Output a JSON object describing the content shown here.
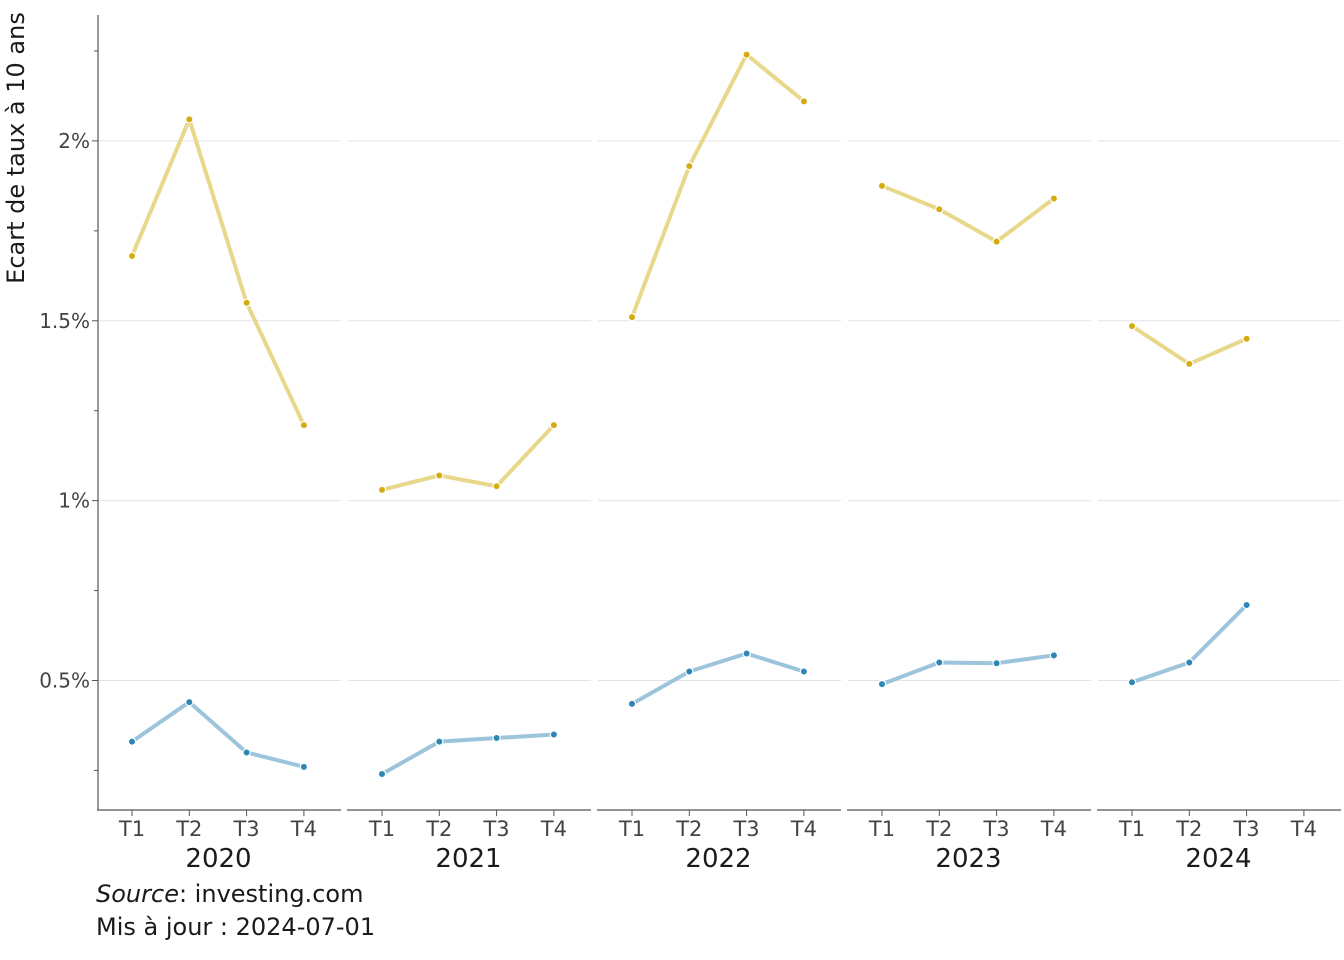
{
  "caption": {
    "source_label": "Source",
    "source_value": ": investing.com",
    "updated": "Mis à jour : 2024-07-01"
  },
  "chart_data": {
    "type": "line",
    "ylabel": "Ecart de taux à 10 ans",
    "ylim": [
      0.14,
      2.35
    ],
    "yticks": [
      {
        "value": 0.5,
        "label": "0.5%"
      },
      {
        "value": 1.0,
        "label": "1%"
      },
      {
        "value": 1.5,
        "label": "1.5%"
      },
      {
        "value": 2.0,
        "label": "2%"
      }
    ],
    "minor_ticks": [
      0.25,
      0.75,
      1.25,
      1.75,
      2.25
    ],
    "grid": true,
    "legend": "none",
    "quarters": [
      "T1",
      "T2",
      "T3",
      "T4"
    ],
    "panels": [
      "2020",
      "2021",
      "2022",
      "2023",
      "2024"
    ],
    "series": [
      {
        "color": "#d4ac0d",
        "line_color": "#e8d88b",
        "values": [
          [
            1.68,
            2.06,
            1.55,
            1.21
          ],
          [
            1.03,
            1.07,
            1.04,
            1.21
          ],
          [
            1.51,
            1.93,
            2.24,
            2.11
          ],
          [
            1.875,
            1.81,
            1.72,
            1.84
          ],
          [
            1.485,
            1.38,
            1.45,
            null
          ]
        ]
      },
      {
        "color": "#2e86b5",
        "line_color": "#9cc4da",
        "values": [
          [
            0.33,
            0.44,
            0.3,
            0.26
          ],
          [
            0.24,
            0.33,
            0.34,
            0.35
          ],
          [
            0.435,
            0.525,
            0.575,
            0.525
          ],
          [
            0.49,
            0.55,
            0.548,
            0.57
          ],
          [
            0.495,
            0.55,
            0.71,
            null
          ]
        ]
      }
    ]
  }
}
